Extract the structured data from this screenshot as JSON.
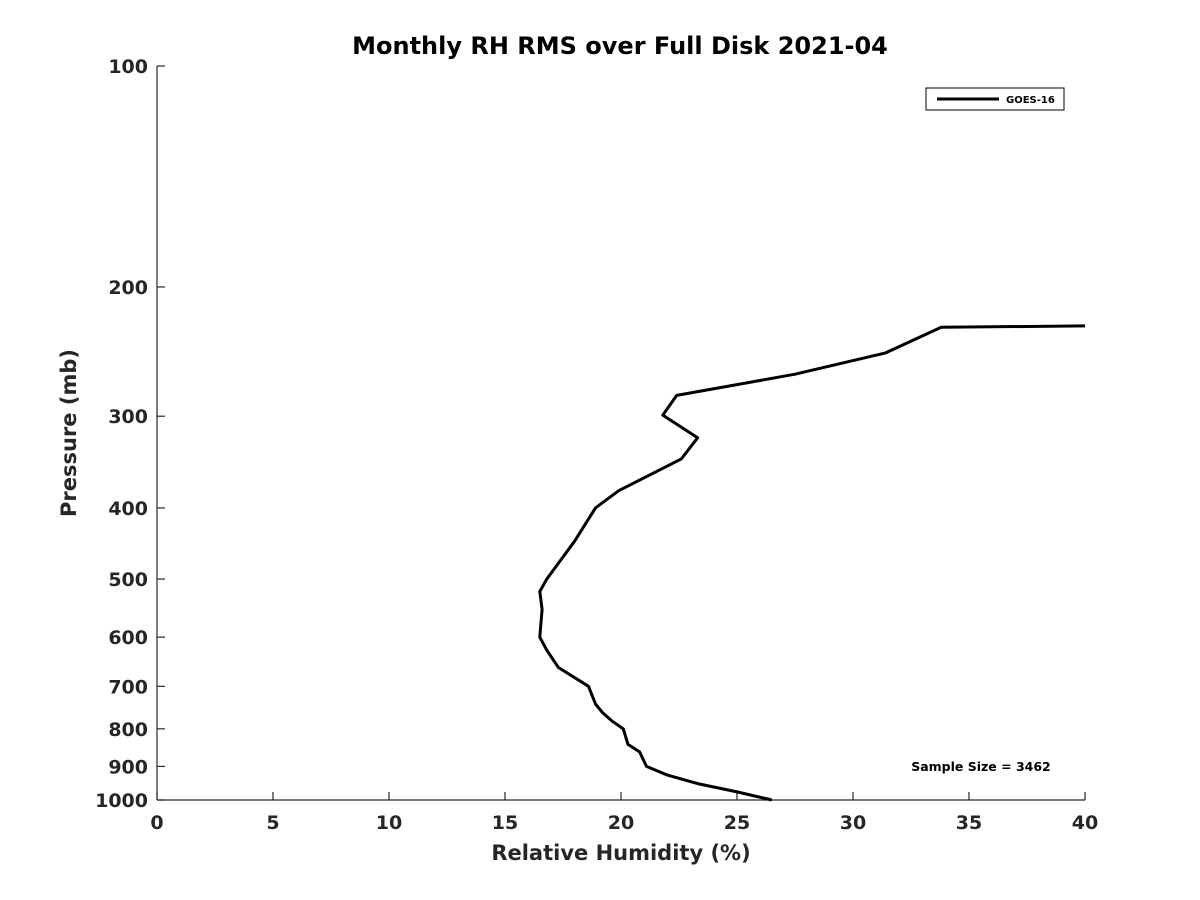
{
  "chart_data": {
    "type": "line",
    "title": "Monthly RH RMS over Full Disk  2021-04",
    "xlabel": "Relative Humidity (%)",
    "ylabel": "Pressure (mb)",
    "xlim": [
      0,
      40
    ],
    "ylim": [
      100,
      1000
    ],
    "yscale": "log",
    "y_reversed": true,
    "grid": false,
    "legend_position": "top-right",
    "xticks": [
      "0",
      "5",
      "10",
      "15",
      "20",
      "25",
      "30",
      "35",
      "40"
    ],
    "yticks": [
      "100",
      "200",
      "300",
      "400",
      "500",
      "600",
      "700",
      "800",
      "900",
      "1000"
    ],
    "series": [
      {
        "name": "GOES-16",
        "color": "#000000",
        "points": [
          [
            40.0,
            226
          ],
          [
            33.8,
            227
          ],
          [
            31.4,
            246
          ],
          [
            27.5,
            263
          ],
          [
            22.4,
            281
          ],
          [
            21.8,
            299
          ],
          [
            23.3,
            321
          ],
          [
            22.6,
            343
          ],
          [
            19.9,
            379
          ],
          [
            18.9,
            400
          ],
          [
            18.0,
            444
          ],
          [
            16.8,
            500
          ],
          [
            16.5,
            520
          ],
          [
            16.6,
            550
          ],
          [
            16.5,
            600
          ],
          [
            16.8,
            625
          ],
          [
            17.3,
            660
          ],
          [
            18.6,
            700
          ],
          [
            18.9,
            740
          ],
          [
            19.2,
            760
          ],
          [
            19.6,
            780
          ],
          [
            20.1,
            800
          ],
          [
            20.3,
            840
          ],
          [
            20.8,
            860
          ],
          [
            21.1,
            900
          ],
          [
            22.0,
            925
          ],
          [
            23.3,
            950
          ],
          [
            25.0,
            975
          ],
          [
            26.5,
            1000
          ]
        ]
      }
    ],
    "annotation": "Sample Size = 3462"
  }
}
